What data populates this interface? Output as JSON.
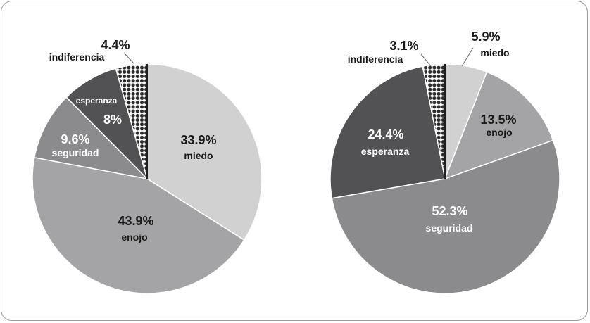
{
  "chart_data": [
    {
      "type": "pie",
      "slices": [
        {
          "label": "miedo",
          "value": 33.9,
          "value_label": "33.9%",
          "color": "#d1d1d1",
          "pattern": "none"
        },
        {
          "label": "enojo",
          "value": 43.9,
          "value_label": "43.9%",
          "color": "#a4a4a6",
          "pattern": "none"
        },
        {
          "label": "seguridad",
          "value": 9.6,
          "value_label": "9.6%",
          "color": "#8b8b8e",
          "pattern": "none"
        },
        {
          "label": "esperanza",
          "value": 8,
          "value_label": "8%",
          "color": "#525254",
          "pattern": "none"
        },
        {
          "label": "indiferencia",
          "value": 4.4,
          "value_label": "4.4%",
          "color": "#1f1f1f",
          "pattern": "dots"
        }
      ]
    },
    {
      "type": "pie",
      "slices": [
        {
          "label": "miedo",
          "value": 5.9,
          "value_label": "5.9%",
          "color": "#d1d1d1",
          "pattern": "none"
        },
        {
          "label": "enojo",
          "value": 13.5,
          "value_label": "13.5%",
          "color": "#a4a4a6",
          "pattern": "none"
        },
        {
          "label": "seguridad",
          "value": 52.3,
          "value_label": "52.3%",
          "color": "#8b8b8e",
          "pattern": "none"
        },
        {
          "label": "esperanza",
          "value": 24.4,
          "value_label": "24.4%",
          "color": "#525254",
          "pattern": "none"
        },
        {
          "label": "indiferencia",
          "value": 3.1,
          "value_label": "3.1%",
          "color": "#1f1f1f",
          "pattern": "dots"
        }
      ]
    }
  ]
}
